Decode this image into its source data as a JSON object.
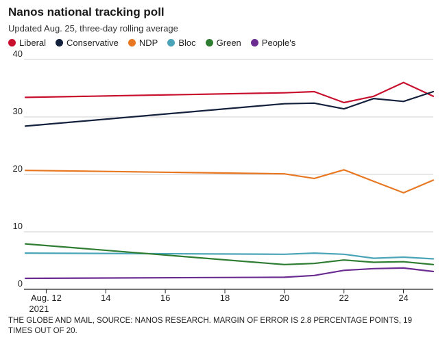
{
  "header": {
    "title": "Nanos national tracking poll",
    "subtitle": "Updated Aug. 25, three-day rolling average"
  },
  "footer": {
    "source": "THE GLOBE AND MAIL, SOURCE: NANOS RESEARCH. MARGIN OF ERROR IS 2.8 PERCENTAGE POINTS, 19 TIMES OUT OF 20."
  },
  "chart_data": {
    "type": "line",
    "title": "Nanos national tracking poll",
    "subtitle": "Updated Aug. 25, three-day rolling average",
    "xlabel": "",
    "ylabel": "",
    "x_range": [
      11.3,
      25
    ],
    "ylim": [
      0,
      40
    ],
    "y_ticks": [
      0,
      10,
      20,
      30,
      40
    ],
    "x_ticks": [
      {
        "x": 12,
        "label": "Aug. 12",
        "sublabel": "2021"
      },
      {
        "x": 14,
        "label": "14"
      },
      {
        "x": 16,
        "label": "16"
      },
      {
        "x": 18,
        "label": "18"
      },
      {
        "x": 20,
        "label": "20"
      },
      {
        "x": 22,
        "label": "22"
      },
      {
        "x": 24,
        "label": "24"
      }
    ],
    "grid": "horizontal",
    "legend_position": "top-left",
    "series": [
      {
        "name": "Liberal",
        "color": "#c8102e",
        "points": [
          [
            11.3,
            33.4
          ],
          [
            20,
            34.2
          ],
          [
            21,
            34.4
          ],
          [
            22,
            32.5
          ],
          [
            23,
            33.6
          ],
          [
            24,
            36.0
          ],
          [
            25,
            33.6
          ]
        ]
      },
      {
        "name": "Conservative",
        "color": "#14213d",
        "points": [
          [
            11.3,
            28.4
          ],
          [
            20,
            32.3
          ],
          [
            21,
            32.4
          ],
          [
            22,
            31.4
          ],
          [
            23,
            33.2
          ],
          [
            24,
            32.7
          ],
          [
            25,
            34.4
          ]
        ]
      },
      {
        "name": "NDP",
        "color": "#e87722",
        "points": [
          [
            11.3,
            20.7
          ],
          [
            20,
            20.1
          ],
          [
            21,
            19.3
          ],
          [
            22,
            20.8
          ],
          [
            23,
            18.8
          ],
          [
            24,
            16.8
          ],
          [
            25,
            19.0
          ]
        ]
      },
      {
        "name": "Bloc",
        "color": "#4aa4b8",
        "points": [
          [
            11.3,
            6.3
          ],
          [
            20,
            6.1
          ],
          [
            21,
            6.3
          ],
          [
            22,
            6.1
          ],
          [
            23,
            5.4
          ],
          [
            24,
            5.6
          ],
          [
            25,
            5.3
          ]
        ]
      },
      {
        "name": "Green",
        "color": "#2e7d32",
        "points": [
          [
            11.3,
            7.9
          ],
          [
            20,
            4.3
          ],
          [
            21,
            4.5
          ],
          [
            22,
            5.1
          ],
          [
            23,
            4.7
          ],
          [
            24,
            4.8
          ],
          [
            25,
            4.3
          ]
        ]
      },
      {
        "name": "People's",
        "color": "#6a2c91",
        "points": [
          [
            11.3,
            1.9
          ],
          [
            20,
            2.1
          ],
          [
            21,
            2.4
          ],
          [
            22,
            3.3
          ],
          [
            23,
            3.6
          ],
          [
            24,
            3.7
          ],
          [
            25,
            3.1
          ]
        ]
      }
    ]
  }
}
